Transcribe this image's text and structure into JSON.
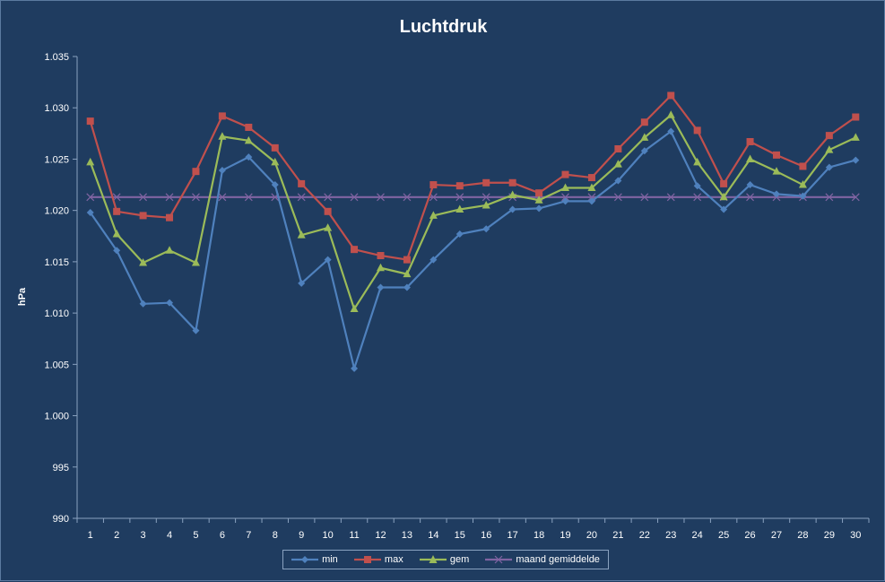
{
  "chart_data": {
    "type": "line",
    "title": "Luchtdruk",
    "ylabel": "hPa",
    "xlabel": "",
    "ylim": [
      990,
      1035
    ],
    "yticks": [
      990,
      995,
      1000,
      1005,
      1010,
      1015,
      1020,
      1025,
      1030,
      1035
    ],
    "ytick_labels": [
      "990",
      "995",
      "1.000",
      "1.005",
      "1.010",
      "1.015",
      "1.020",
      "1.025",
      "1.030",
      "1.035"
    ],
    "categories": [
      "1",
      "2",
      "3",
      "4",
      "5",
      "6",
      "7",
      "8",
      "9",
      "10",
      "11",
      "12",
      "13",
      "14",
      "15",
      "16",
      "17",
      "18",
      "19",
      "20",
      "21",
      "22",
      "23",
      "24",
      "25",
      "26",
      "27",
      "28",
      "29",
      "30"
    ],
    "legend_position": "bottom",
    "grid": false,
    "series": [
      {
        "name": "min",
        "color": "#4f81bd",
        "marker": "diamond",
        "values": [
          1019.8,
          1016.1,
          1010.9,
          1011.0,
          1008.3,
          1023.9,
          1025.2,
          1022.5,
          1012.9,
          1015.2,
          1004.6,
          1012.5,
          1012.5,
          1015.2,
          1017.7,
          1018.2,
          1020.1,
          1020.2,
          1020.9,
          1020.9,
          1022.9,
          1025.8,
          1027.7,
          1022.4,
          1020.1,
          1022.5,
          1021.6,
          1021.4,
          1024.2,
          1024.9
        ]
      },
      {
        "name": "max",
        "color": "#c0504d",
        "marker": "square",
        "values": [
          1028.7,
          1019.9,
          1019.5,
          1019.3,
          1023.8,
          1029.2,
          1028.1,
          1026.1,
          1022.6,
          1019.9,
          1016.2,
          1015.6,
          1015.2,
          1022.5,
          1022.4,
          1022.7,
          1022.7,
          1021.7,
          1023.5,
          1023.2,
          1026.0,
          1028.6,
          1031.2,
          1027.8,
          1022.6,
          1026.7,
          1025.4,
          1024.3,
          1027.3,
          1029.1
        ]
      },
      {
        "name": "gem",
        "color": "#9bbb59",
        "marker": "triangle",
        "values": [
          1024.7,
          1017.7,
          1014.9,
          1016.1,
          1014.9,
          1027.2,
          1026.8,
          1024.7,
          1017.6,
          1018.3,
          1010.4,
          1014.4,
          1013.8,
          1019.5,
          1020.1,
          1020.5,
          1021.5,
          1021.0,
          1022.2,
          1022.2,
          1024.5,
          1027.1,
          1029.3,
          1024.7,
          1021.3,
          1025.0,
          1023.8,
          1022.5,
          1025.9,
          1027.1
        ]
      },
      {
        "name": "maand gemiddelde",
        "color": "#8064a2",
        "marker": "x",
        "values": [
          1021.3,
          1021.3,
          1021.3,
          1021.3,
          1021.3,
          1021.3,
          1021.3,
          1021.3,
          1021.3,
          1021.3,
          1021.3,
          1021.3,
          1021.3,
          1021.3,
          1021.3,
          1021.3,
          1021.3,
          1021.3,
          1021.3,
          1021.3,
          1021.3,
          1021.3,
          1021.3,
          1021.3,
          1021.3,
          1021.3,
          1021.3,
          1021.3,
          1021.3,
          1021.3
        ]
      }
    ]
  }
}
